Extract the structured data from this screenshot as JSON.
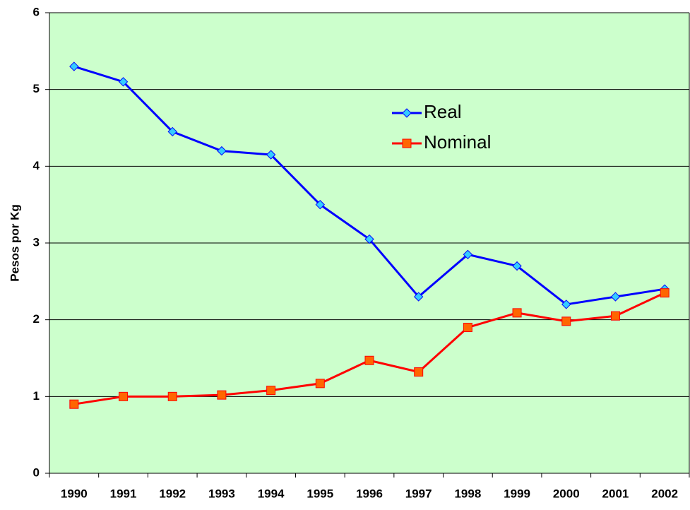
{
  "chart_data": {
    "type": "line",
    "y_label": "Pesos por Kg",
    "categories": [
      "1990",
      "1991",
      "1992",
      "1993",
      "1994",
      "1995",
      "1996",
      "1997",
      "1998",
      "1999",
      "2000",
      "2001",
      "2002"
    ],
    "series": [
      {
        "name": "Real",
        "color": "#0000ff",
        "marker_color": "#33ccff",
        "marker": "diamond",
        "values": [
          5.3,
          5.1,
          4.45,
          4.2,
          4.15,
          3.5,
          3.05,
          2.3,
          2.85,
          2.7,
          2.2,
          2.3,
          2.4
        ]
      },
      {
        "name": "Nominal",
        "color": "#ff0000",
        "marker_color": "#ff6600",
        "marker": "square",
        "values": [
          0.9,
          1.0,
          1.0,
          1.02,
          1.08,
          1.17,
          1.47,
          1.32,
          1.9,
          2.09,
          1.98,
          2.05,
          2.35
        ]
      }
    ],
    "ylim": [
      0,
      6
    ],
    "yticks": [
      0,
      1,
      2,
      3,
      4,
      5,
      6
    ],
    "grid": true,
    "background": "#ccffcc"
  }
}
